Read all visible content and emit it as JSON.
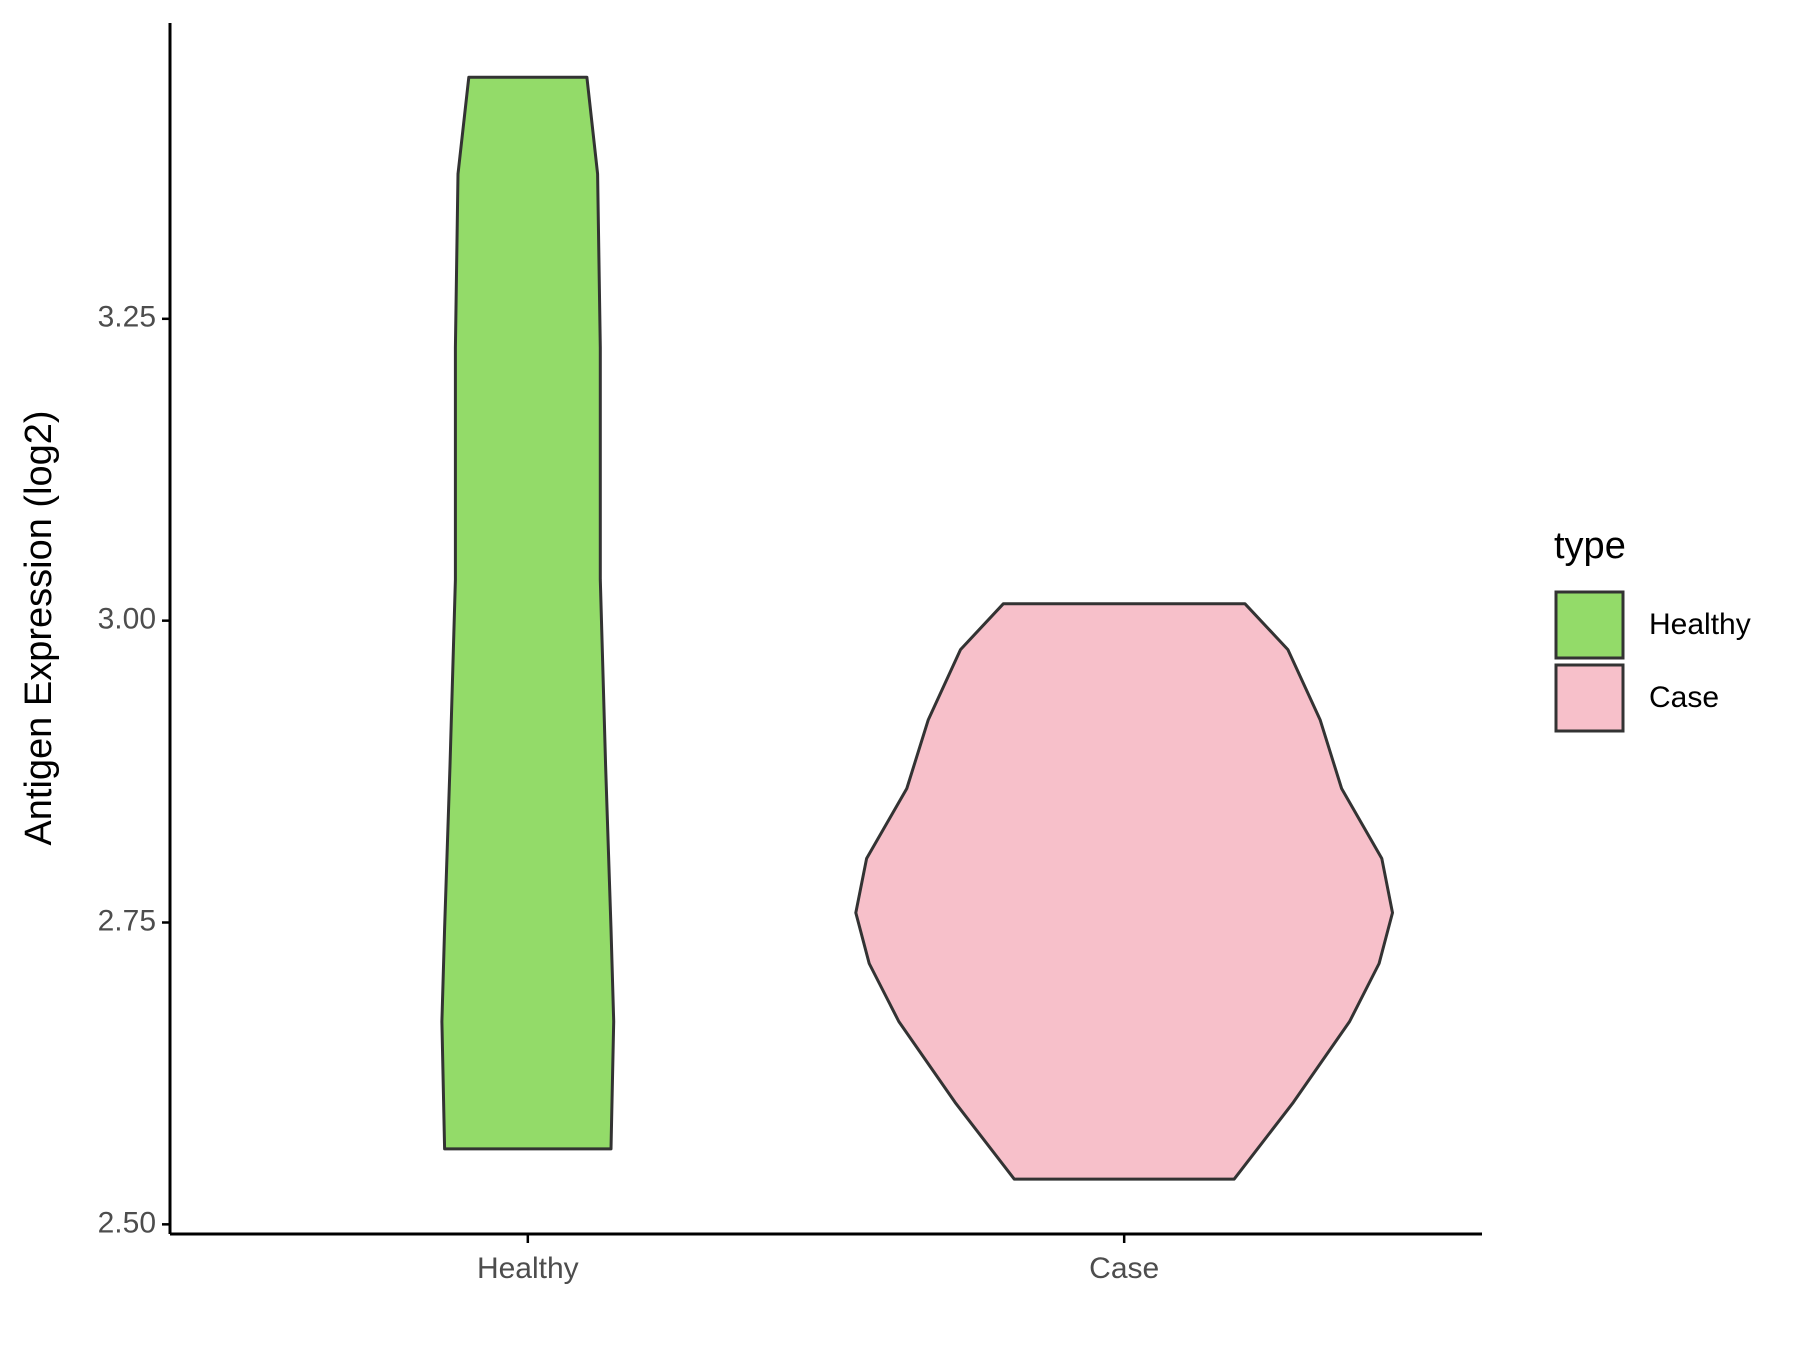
{
  "chart_data": {
    "type": "violin",
    "y_label": "Antigen Expression (log2)",
    "categories": [
      "Healthy",
      "Case"
    ],
    "legend_title": "type",
    "legend_position": "right",
    "ylim": [
      2.492,
      3.495
    ],
    "yticks": [
      {
        "value": 2.5,
        "label": "2.50"
      },
      2.75,
      {
        "value": 3.0,
        "label": "3.00"
      },
      3.25
    ],
    "series": [
      {
        "name": "Healthy",
        "color": "#93db69",
        "y": [
          3.45,
          3.37,
          3.226,
          3.034,
          2.88,
          2.745,
          2.668,
          2.5625
        ],
        "density": [
          0.22,
          0.26,
          0.27,
          0.27,
          0.29,
          0.31,
          0.32,
          0.31
        ]
      },
      {
        "name": "Case",
        "color": "#f7c0ca",
        "y": [
          3.014,
          2.976,
          2.918,
          2.861,
          2.803,
          2.758,
          2.716,
          2.668,
          2.601,
          2.5375
        ],
        "density": [
          0.45,
          0.61,
          0.73,
          0.81,
          0.96,
          1.0,
          0.95,
          0.84,
          0.63,
          0.41
        ]
      }
    ]
  }
}
